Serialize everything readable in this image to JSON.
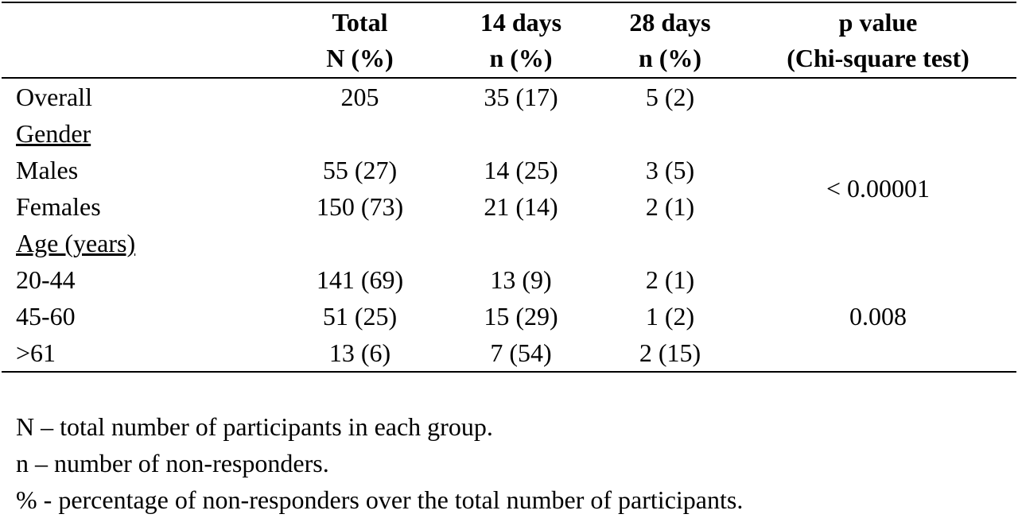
{
  "table": {
    "columns": [
      {
        "lines": [
          "Total",
          "N (%)"
        ]
      },
      {
        "lines": [
          "14 days",
          "n (%)"
        ]
      },
      {
        "lines": [
          "28 days",
          "n (%)"
        ]
      },
      {
        "lines": [
          "p value",
          "(Chi-square test)"
        ]
      }
    ],
    "overall": {
      "label": "Overall",
      "values": [
        "205",
        "35 (17)",
        "5 (2)"
      ]
    },
    "groups": [
      {
        "title": "Gender",
        "p_value": "< 0.00001",
        "rows": [
          {
            "label": "Males",
            "values": [
              "55 (27)",
              "14 (25)",
              "3 (5)"
            ]
          },
          {
            "label": "Females",
            "values": [
              "150 (73)",
              "21 (14)",
              "2 (1)"
            ]
          }
        ]
      },
      {
        "title": "Age (years)",
        "p_value": "0.008",
        "rows": [
          {
            "label": "20-44",
            "values": [
              "141 (69)",
              "13 (9)",
              "2 (1)"
            ]
          },
          {
            "label": "45-60",
            "values": [
              "51 (25)",
              "15 (29)",
              "1 (2)"
            ]
          },
          {
            "label": ">61",
            "values": [
              "13 (6)",
              "7 (54)",
              "2 (15)"
            ]
          }
        ]
      }
    ]
  },
  "notes": [
    "N – total number of participants in each group.",
    "n – number of non-responders.",
    "% - percentage of non-responders over the total number of participants."
  ]
}
